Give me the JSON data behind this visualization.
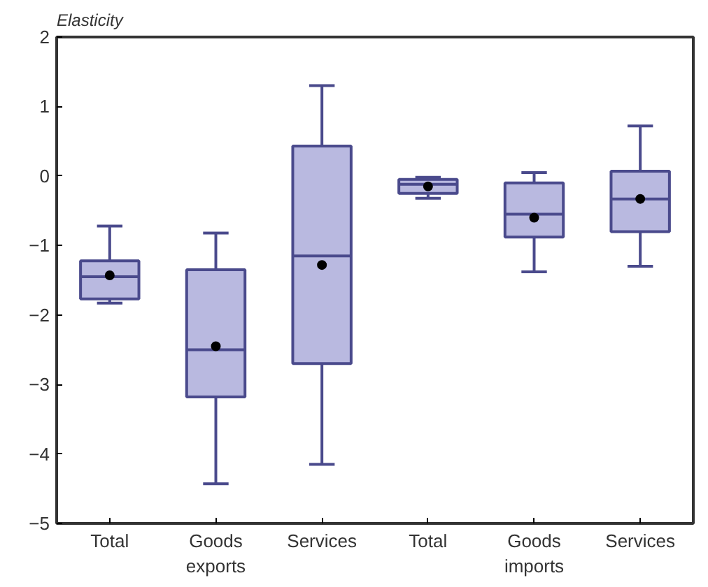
{
  "chart_data": {
    "type": "box",
    "ylabel": "Elasticity",
    "categories": [
      "Total",
      "Goods\nexports",
      "Services",
      "Total",
      "Goods\nimports",
      "Services"
    ],
    "color": "#b9b9e0",
    "boxes": [
      {
        "low": -1.83,
        "q1": -1.77,
        "median": -1.45,
        "q3": -1.22,
        "high": -0.72,
        "mean": -1.43
      },
      {
        "low": -4.43,
        "q1": -3.18,
        "median": -2.5,
        "q3": -1.35,
        "high": -0.82,
        "mean": -2.45
      },
      {
        "low": -4.15,
        "q1": -2.7,
        "median": -1.15,
        "q3": 0.43,
        "high": 1.3,
        "mean": -1.28
      },
      {
        "low": -0.32,
        "q1": -0.25,
        "median": -0.12,
        "q3": -0.05,
        "high": -0.02,
        "mean": -0.15
      },
      {
        "low": -1.38,
        "q1": -0.88,
        "median": -0.55,
        "q3": -0.1,
        "high": 0.05,
        "mean": -0.6
      },
      {
        "low": -1.3,
        "q1": -0.8,
        "median": -0.33,
        "q3": 0.07,
        "high": 0.72,
        "mean": -0.33
      }
    ],
    "ylim": [
      -5,
      2
    ],
    "yticks": [
      {
        "value": -5,
        "label": "−5"
      },
      {
        "value": -4,
        "label": "−4"
      },
      {
        "value": -3,
        "label": "−3"
      },
      {
        "value": -2,
        "label": "−2"
      },
      {
        "value": -1,
        "label": "−1"
      },
      0,
      1,
      2
    ],
    "grid": false
  }
}
